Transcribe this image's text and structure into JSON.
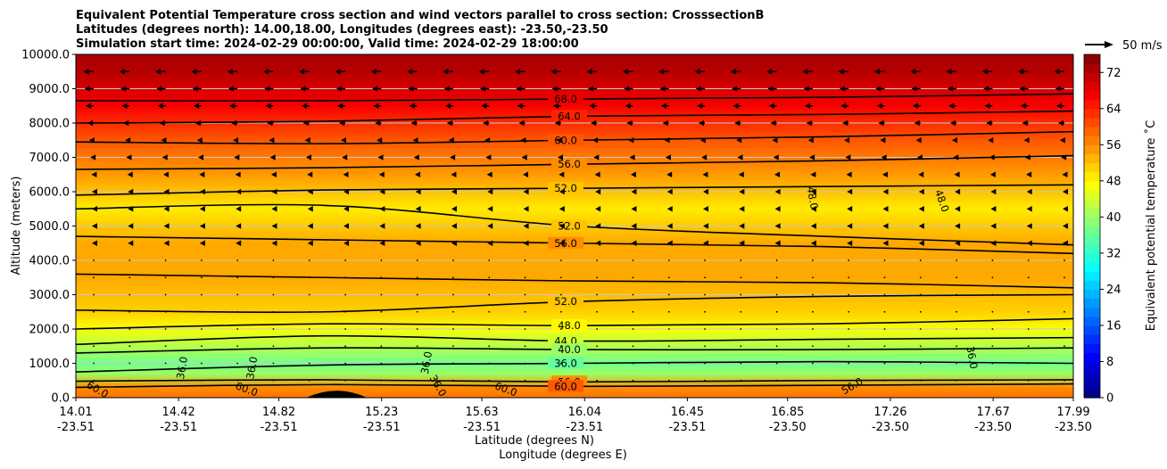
{
  "title_lines": [
    "Equivalent Potential Temperature cross section and wind vectors parallel to cross section: CrosssectionB",
    "Latitudes (degrees north): 14.00,18.00, Longitudes (degrees east): -23.50,-23.50",
    "Simulation start time: 2024-02-29 00:00:00, Valid time: 2024-02-29 18:00:00"
  ],
  "xlabel_lat": "Latitude (degrees N)",
  "xlabel_lon": "Longitude (degrees E)",
  "ylabel": "Altitude (meters)",
  "colorbar_label": "Equivalent potential temperature ˚C",
  "quiver_key_label": "50 m/s",
  "chart_data": {
    "type": "heatmap",
    "subtype": "filled-contour cross section with wind vectors",
    "x_ticks_lat": [
      "14.01",
      "14.42",
      "14.82",
      "15.23",
      "15.63",
      "16.04",
      "16.45",
      "16.85",
      "17.26",
      "17.67",
      "17.99"
    ],
    "x_ticks_lon": [
      "-23.51",
      "-23.51",
      "-23.51",
      "-23.51",
      "-23.51",
      "-23.51",
      "-23.51",
      "-23.50",
      "-23.50",
      "-23.50",
      "-23.50"
    ],
    "x_range": [
      14.01,
      17.99
    ],
    "y_ticks": [
      "0.0",
      "1000.0",
      "2000.0",
      "3000.0",
      "4000.0",
      "5000.0",
      "6000.0",
      "7000.0",
      "8000.0",
      "9000.0",
      "10000.0"
    ],
    "ylim": [
      0,
      10000
    ],
    "y_gridlines": true,
    "colorbar_ticks": [
      0,
      8,
      16,
      24,
      32,
      40,
      48,
      56,
      64,
      72
    ],
    "colorbar_range": [
      0,
      76
    ],
    "colormap": "jet",
    "theta_e_profile": [
      {
        "alt": 0,
        "value": 58
      },
      {
        "alt": 300,
        "value": 56
      },
      {
        "alt": 700,
        "value": 40
      },
      {
        "alt": 1000,
        "value": 37
      },
      {
        "alt": 1500,
        "value": 42
      },
      {
        "alt": 2000,
        "value": 47
      },
      {
        "alt": 2500,
        "value": 51
      },
      {
        "alt": 3500,
        "value": 54
      },
      {
        "alt": 4500,
        "value": 54
      },
      {
        "alt": 5500,
        "value": 49
      },
      {
        "alt": 6500,
        "value": 55
      },
      {
        "alt": 7500,
        "value": 60
      },
      {
        "alt": 8500,
        "value": 67
      },
      {
        "alt": 9500,
        "value": 72
      },
      {
        "alt": 10000,
        "value": 73
      }
    ],
    "contours": [
      {
        "label": "68.0",
        "alts": [
          8650,
          8650,
          8700,
          8750,
          8850
        ]
      },
      {
        "label": "64.0",
        "alts": [
          8000,
          8050,
          8200,
          8250,
          8350
        ]
      },
      {
        "label": "60.0",
        "alts": [
          7450,
          7400,
          7500,
          7600,
          7750
        ]
      },
      {
        "label": "56.0",
        "alts": [
          6650,
          6700,
          6800,
          6900,
          7050
        ]
      },
      {
        "label": "52.0",
        "alts": [
          5900,
          6050,
          6100,
          6150,
          6200
        ]
      },
      {
        "label": "52.0",
        "alts": [
          5500,
          5600,
          5000,
          4700,
          4450
        ]
      },
      {
        "label": "56.0",
        "alts": [
          4700,
          4600,
          4500,
          4400,
          4200
        ]
      },
      {
        "label": "",
        "alts": [
          3600,
          3500,
          3400,
          3350,
          3200
        ]
      },
      {
        "label": "52.0",
        "alts": [
          2550,
          2500,
          2800,
          2950,
          3000
        ]
      },
      {
        "label": "48.0",
        "alts": [
          2000,
          2150,
          2100,
          2150,
          2300
        ]
      },
      {
        "label": "44.0",
        "alts": [
          1550,
          1800,
          1650,
          1700,
          1750
        ]
      },
      {
        "label": "40.0",
        "alts": [
          1300,
          1450,
          1400,
          1400,
          1450
        ]
      },
      {
        "label": "36.0",
        "alts": [
          750,
          950,
          1000,
          1050,
          1000
        ]
      },
      {
        "label": "56.0",
        "alts": [
          480,
          520,
          460,
          500,
          520
        ]
      },
      {
        "label": "60.0",
        "alts": [
          300,
          380,
          330,
          360,
          400
        ]
      }
    ],
    "other_contour_labels": [
      "48.0",
      "48.0",
      "36.0",
      "36.0",
      "36.0",
      "36.0",
      "36.0",
      "60.0",
      "60.0",
      "60.0",
      "56.0"
    ],
    "wind_vectors": {
      "direction": "westward (pointing to lower latitude)",
      "levels": [
        {
          "alt": 9500,
          "speed": 18
        },
        {
          "alt": 9000,
          "speed": 16
        },
        {
          "alt": 8500,
          "speed": 14
        },
        {
          "alt": 8000,
          "speed": 11
        },
        {
          "alt": 7500,
          "speed": 8
        },
        {
          "alt": 7000,
          "speed": 6
        },
        {
          "alt": 6500,
          "speed": 4
        },
        {
          "alt": 6000,
          "speed": 3
        },
        {
          "alt": 5500,
          "speed": 2
        },
        {
          "alt": 5000,
          "speed": 1.5
        },
        {
          "alt": 4500,
          "speed": 1
        }
      ],
      "key_speed": 50
    },
    "terrain_bump": {
      "lat_center": 15.05,
      "height": 250
    }
  }
}
